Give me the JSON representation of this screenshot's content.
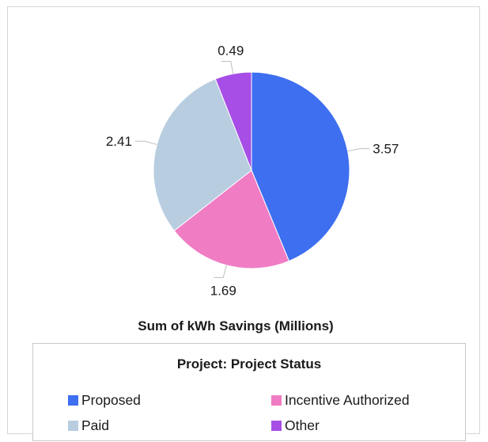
{
  "chart_data": {
    "type": "pie",
    "title": "",
    "xlabel": "Sum of kWh Savings (Millions)",
    "categories": [
      "Proposed",
      "Incentive Authorized",
      "Paid",
      "Other"
    ],
    "values": [
      3.57,
      1.69,
      2.41,
      0.49
    ],
    "value_labels": [
      "3.57",
      "1.69",
      "2.41",
      "0.49"
    ],
    "colors": [
      "#3d6ff0",
      "#f07cc4",
      "#b8cde0",
      "#a64ee6"
    ],
    "start_angle_deg": 0,
    "direction": "clockwise",
    "legend": {
      "title": "Project: Project Status",
      "placement": "bottom",
      "items": [
        "Proposed",
        "Incentive Authorized",
        "Paid",
        "Other"
      ]
    }
  }
}
